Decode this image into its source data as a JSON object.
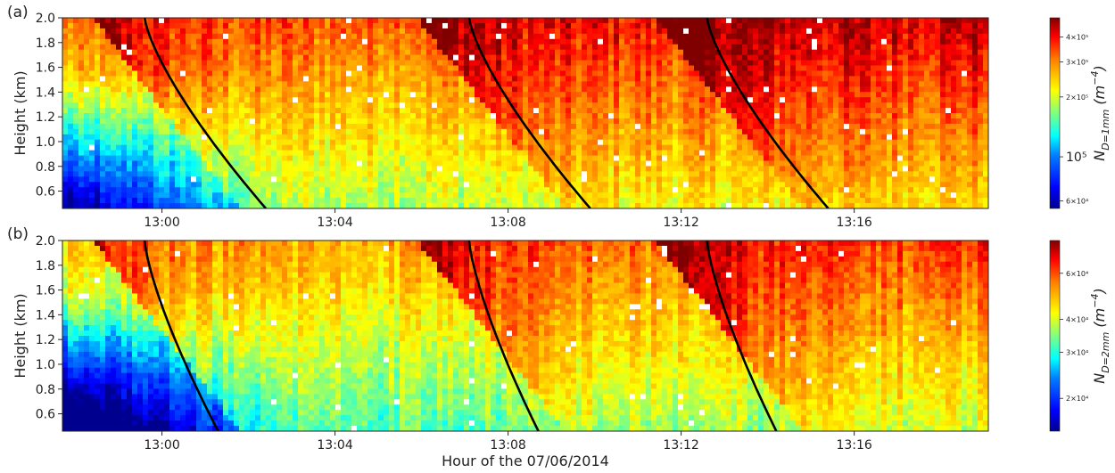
{
  "chart_data": [
    {
      "type": "heatmap",
      "panel_label": "(a)",
      "ylabel": "Height (km)",
      "yticks": [
        "0.6",
        "0.8",
        "1.0",
        "1.2",
        "1.4",
        "1.6",
        "1.8",
        "2.0"
      ],
      "ytick_values": [
        0.6,
        0.8,
        1.0,
        1.2,
        1.4,
        1.6,
        1.8,
        2.0
      ],
      "ylim": [
        0.46,
        2.0
      ],
      "xticks": [
        "13:00",
        "13:04",
        "13:08",
        "13:12",
        "13:16"
      ],
      "xtick_values_min": [
        60,
        64,
        68,
        72,
        76
      ],
      "xlim_min": [
        57.7,
        79.1
      ],
      "colorbar": {
        "label_main": "N",
        "label_sub": "D=1mm",
        "label_unit": "(m",
        "label_exp": "−4",
        "label_close": ")",
        "scale": "log",
        "range": [
          55000,
          500000
        ],
        "ticks": [
          "4×10⁵",
          "3×10⁵",
          "2×10⁵",
          "10⁵",
          "6×10⁴"
        ],
        "tick_values": [
          400000,
          300000,
          200000,
          100000,
          60000
        ]
      },
      "curves": [
        {
          "time_at_top_min": 59.6,
          "time_at_bottom_min": 62.4
        },
        {
          "time_at_top_min": 67.1,
          "time_at_bottom_min": 69.9
        },
        {
          "time_at_top_min": 72.6,
          "time_at_bottom_min": 75.4
        }
      ]
    },
    {
      "type": "heatmap",
      "panel_label": "(b)",
      "ylabel": "Height (km)",
      "yticks": [
        "0.6",
        "0.8",
        "1.0",
        "1.2",
        "1.4",
        "1.6",
        "1.8",
        "2.0"
      ],
      "ytick_values": [
        0.6,
        0.8,
        1.0,
        1.2,
        1.4,
        1.6,
        1.8,
        2.0
      ],
      "ylim": [
        0.46,
        2.0
      ],
      "xticks": [
        "13:00",
        "13:04",
        "13:08",
        "13:12",
        "13:16"
      ],
      "xtick_values_min": [
        60,
        64,
        68,
        72,
        76
      ],
      "xlim_min": [
        57.7,
        79.1
      ],
      "xlabel": "Hour of the 07/06/2014",
      "colorbar": {
        "label_main": "N",
        "label_sub": "D=2mm",
        "label_unit": "(m",
        "label_exp": "−4",
        "label_close": ")",
        "scale": "log",
        "range": [
          15000,
          80000
        ],
        "ticks": [
          "6×10⁴",
          "4×10⁴",
          "3×10⁴",
          "2×10⁴"
        ],
        "tick_values": [
          60000,
          40000,
          30000,
          20000
        ]
      },
      "curves": [
        {
          "time_at_top_min": 59.6,
          "time_at_bottom_min": 61.3
        },
        {
          "time_at_top_min": 67.1,
          "time_at_bottom_min": 68.7
        },
        {
          "time_at_top_min": 72.6,
          "time_at_bottom_min": 74.2
        }
      ]
    }
  ],
  "colors": {
    "jet_stops": [
      "#00008f",
      "#0000ff",
      "#0080ff",
      "#00ffff",
      "#80ff80",
      "#ffff00",
      "#ff8000",
      "#ff0000",
      "#800000"
    ],
    "curve": "#000000",
    "frame": "#222222"
  }
}
